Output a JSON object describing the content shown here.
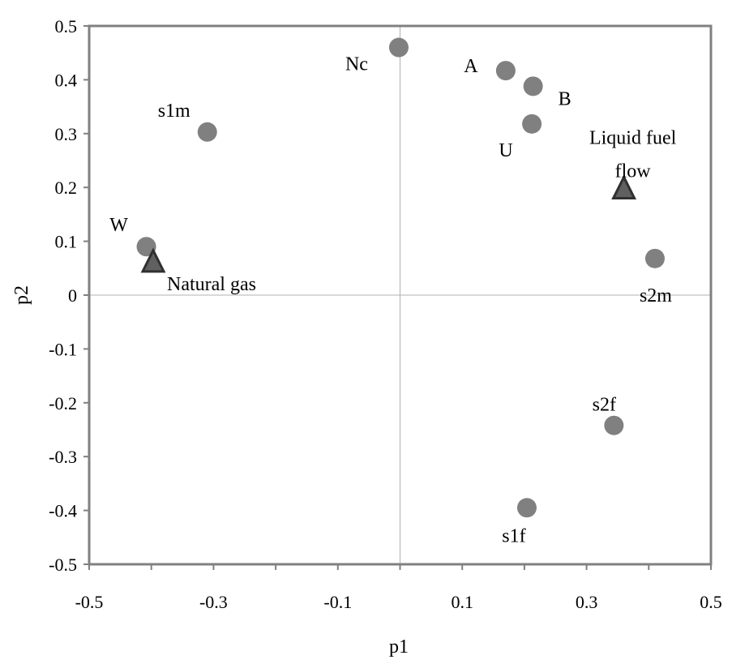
{
  "chart_data": {
    "type": "scatter",
    "title": "",
    "xlabel": "p1",
    "ylabel": "p2",
    "xlim": [
      -0.5,
      0.5
    ],
    "ylim": [
      -0.5,
      0.5
    ],
    "xticks": [
      "-0.5",
      "-0.3",
      "-0.1",
      "0.1",
      "0.3",
      "0.5"
    ],
    "xtick_values": [
      -0.5,
      -0.3,
      -0.1,
      0.1,
      0.3,
      0.5
    ],
    "yticks": [
      "0.5",
      "0.4",
      "0.3",
      "0.2",
      "0.1",
      "0",
      "-0.1",
      "-0.2",
      "-0.3",
      "-0.4",
      "-0.5"
    ],
    "ytick_values": [
      0.5,
      0.4,
      0.3,
      0.2,
      0.1,
      0,
      -0.1,
      -0.2,
      -0.3,
      -0.4,
      -0.5
    ],
    "grid": false,
    "zero_lines": true,
    "series": [
      {
        "marker": "circle",
        "color": "#808080",
        "points": [
          {
            "label": "Nc",
            "x": -0.002,
            "y": 0.46
          },
          {
            "label": "A",
            "x": 0.17,
            "y": 0.417
          },
          {
            "label": "B",
            "x": 0.214,
            "y": 0.388
          },
          {
            "label": "U",
            "x": 0.212,
            "y": 0.318
          },
          {
            "label": "s1m",
            "x": -0.31,
            "y": 0.303
          },
          {
            "label": "W",
            "x": -0.408,
            "y": 0.09
          },
          {
            "label": "s2m",
            "x": 0.41,
            "y": 0.068
          },
          {
            "label": "s2f",
            "x": 0.344,
            "y": -0.242
          },
          {
            "label": "s1f",
            "x": 0.204,
            "y": -0.395
          }
        ]
      },
      {
        "marker": "triangle",
        "color": "#606060",
        "points": [
          {
            "label": "Natural gas",
            "x": -0.397,
            "y": 0.062
          },
          {
            "label": "Liquid fuel flow",
            "label_lines": [
              "Liquid fuel",
              "flow"
            ],
            "x": 0.36,
            "y": 0.198
          }
        ]
      }
    ]
  }
}
